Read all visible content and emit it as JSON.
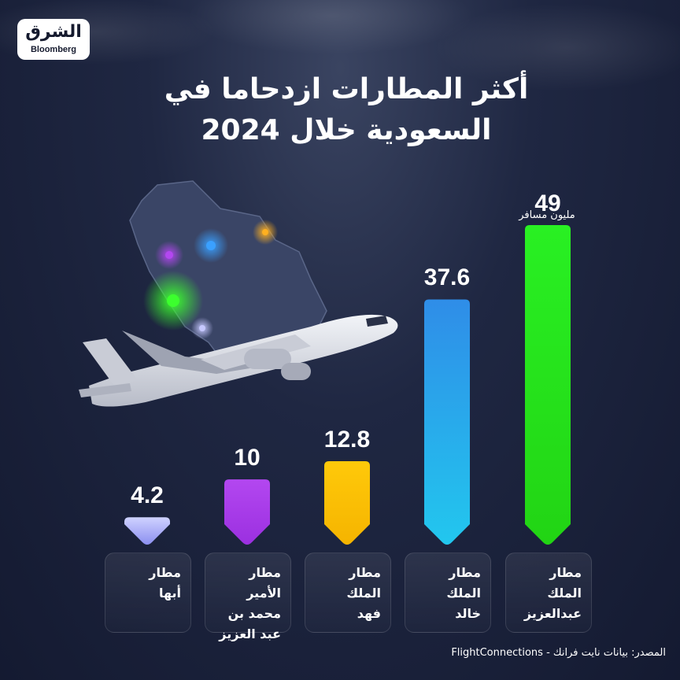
{
  "brand": {
    "arabic": "الشرق",
    "english": "Bloomberg"
  },
  "title": "أكثر المطارات ازدحاما في السعودية خلال 2024",
  "source": "المصدر: بيانات نايت فرانك - FlightConnections",
  "chart_data": {
    "type": "bar",
    "title": "أكثر المطارات ازدحاما في السعودية خلال 2024",
    "unit": "مليون مسافر",
    "categories": [
      "مطار أبها",
      "مطار الأمير محمد بن عبد العزيز",
      "مطار الملك فهد",
      "مطار الملك خالد",
      "مطار الملك عبدالعزيز"
    ],
    "category_lines": [
      "مطار\nأبها",
      "مطار الأمير\nمحمد بن\nعبد العزيز",
      "مطار\nالملك\nفهد",
      "مطار\nالملك\nخالد",
      "مطار\nالملك\nعبدالعزيز"
    ],
    "values": [
      4.2,
      10,
      12.8,
      37.6,
      49
    ],
    "value_labels": [
      "4.2",
      "10",
      "12.8",
      "37.6",
      "49"
    ],
    "colors": [
      "#cfd2ff",
      "#b347f0",
      "#ffc90a",
      "#2f8de8",
      "#29f023"
    ],
    "colors_bottom": [
      "#8c8ff0",
      "#9b30e0",
      "#f5b400",
      "#22c7ee",
      "#22d414"
    ]
  }
}
